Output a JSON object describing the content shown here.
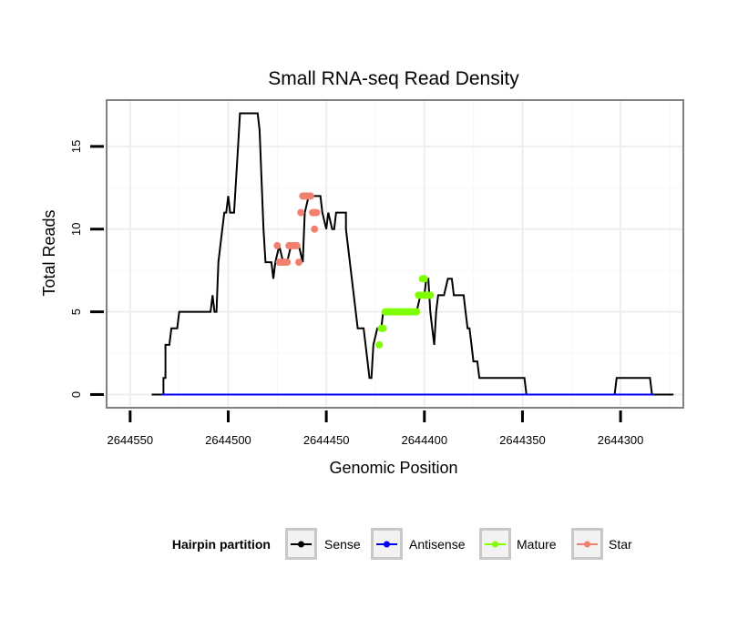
{
  "chart_data": {
    "type": "line",
    "title": "Small RNA-seq Read Density",
    "xlabel": "Genomic Position",
    "ylabel": "Total Reads",
    "x_reversed": true,
    "xlim": [
      2644562,
      2644268
    ],
    "ylim": [
      -0.8,
      17.8
    ],
    "x_ticks": [
      2644550,
      2644500,
      2644450,
      2644400,
      2644350,
      2644300
    ],
    "y_ticks": [
      0,
      5,
      10,
      15
    ],
    "x_tick_labels": [
      "2644550",
      "2644500",
      "2644450",
      "2644400",
      "2644350",
      "2644300"
    ],
    "y_tick_labels": [
      "0",
      "5",
      "10",
      "15"
    ],
    "grid": true,
    "legend": {
      "title": "Hairpin partition",
      "position": "bottom",
      "entries": [
        {
          "name": "Sense",
          "color": "#000000"
        },
        {
          "name": "Antisense",
          "color": "#0000ff"
        },
        {
          "name": "Mature",
          "color": "#7fff00"
        },
        {
          "name": "Star",
          "color": "#f08070"
        }
      ]
    },
    "series": [
      {
        "name": "Sense",
        "color": "#000000",
        "style": "line",
        "points": [
          [
            2644539,
            0
          ],
          [
            2644533,
            0
          ],
          [
            2644533,
            1
          ],
          [
            2644532,
            1
          ],
          [
            2644532,
            2
          ],
          [
            2644532,
            3
          ],
          [
            2644530,
            3
          ],
          [
            2644529,
            4
          ],
          [
            2644526,
            4
          ],
          [
            2644525,
            5
          ],
          [
            2644514,
            5
          ],
          [
            2644509,
            5
          ],
          [
            2644508,
            6
          ],
          [
            2644507,
            5
          ],
          [
            2644506,
            5
          ],
          [
            2644505,
            8
          ],
          [
            2644503,
            10
          ],
          [
            2644502,
            11
          ],
          [
            2644501,
            11
          ],
          [
            2644500,
            12
          ],
          [
            2644499,
            11
          ],
          [
            2644497,
            11
          ],
          [
            2644496,
            13
          ],
          [
            2644495,
            15
          ],
          [
            2644494,
            17
          ],
          [
            2644485,
            17
          ],
          [
            2644484,
            16
          ],
          [
            2644482,
            10
          ],
          [
            2644481,
            8
          ],
          [
            2644478,
            8
          ],
          [
            2644477,
            7
          ],
          [
            2644476,
            8
          ],
          [
            2644474,
            9
          ],
          [
            2644472,
            8
          ],
          [
            2644470,
            8
          ],
          [
            2644468,
            9
          ],
          [
            2644466,
            9
          ],
          [
            2644464,
            9
          ],
          [
            2644462,
            8
          ],
          [
            2644461,
            11
          ],
          [
            2644459,
            12
          ],
          [
            2644453,
            12
          ],
          [
            2644452,
            11
          ],
          [
            2644450,
            10
          ],
          [
            2644449,
            11
          ],
          [
            2644447,
            10
          ],
          [
            2644446,
            10
          ],
          [
            2644445,
            11
          ],
          [
            2644440,
            11
          ],
          [
            2644440,
            10
          ],
          [
            2644438,
            8
          ],
          [
            2644436,
            6
          ],
          [
            2644434,
            4
          ],
          [
            2644431,
            4
          ],
          [
            2644429,
            2
          ],
          [
            2644428,
            1
          ],
          [
            2644427,
            1
          ],
          [
            2644426,
            3
          ],
          [
            2644424,
            4
          ],
          [
            2644422,
            4
          ],
          [
            2644421,
            5
          ],
          [
            2644404,
            5
          ],
          [
            2644402,
            6
          ],
          [
            2644400,
            6
          ],
          [
            2644399,
            7
          ],
          [
            2644398,
            7
          ],
          [
            2644397,
            5
          ],
          [
            2644396,
            4
          ],
          [
            2644395,
            3
          ],
          [
            2644394,
            5
          ],
          [
            2644393,
            6
          ],
          [
            2644390,
            6
          ],
          [
            2644388,
            7
          ],
          [
            2644386,
            7
          ],
          [
            2644385,
            6
          ],
          [
            2644380,
            6
          ],
          [
            2644379,
            5
          ],
          [
            2644378,
            4
          ],
          [
            2644377,
            4
          ],
          [
            2644376,
            3
          ],
          [
            2644375,
            2
          ],
          [
            2644373,
            2
          ],
          [
            2644372,
            1
          ],
          [
            2644370,
            1
          ],
          [
            2644349,
            1
          ],
          [
            2644348,
            0
          ],
          [
            2644303,
            0
          ],
          [
            2644302,
            1
          ],
          [
            2644285,
            1
          ],
          [
            2644284,
            0
          ],
          [
            2644273,
            0
          ]
        ]
      },
      {
        "name": "Antisense",
        "color": "#0000ff",
        "style": "line",
        "points": [
          [
            2644534,
            0
          ],
          [
            2644283,
            0
          ]
        ]
      },
      {
        "name": "Mature",
        "color": "#7fff00",
        "style": "points",
        "points": [
          [
            2644423,
            3
          ],
          [
            2644422,
            4
          ],
          [
            2644421,
            4
          ],
          [
            2644420,
            5
          ],
          [
            2644419,
            5
          ],
          [
            2644418,
            5
          ],
          [
            2644417,
            5
          ],
          [
            2644416,
            5
          ],
          [
            2644415,
            5
          ],
          [
            2644414,
            5
          ],
          [
            2644413,
            5
          ],
          [
            2644412,
            5
          ],
          [
            2644411,
            5
          ],
          [
            2644410,
            5
          ],
          [
            2644409,
            5
          ],
          [
            2644408,
            5
          ],
          [
            2644407,
            5
          ],
          [
            2644406,
            5
          ],
          [
            2644405,
            5
          ],
          [
            2644404,
            5
          ],
          [
            2644403,
            6
          ],
          [
            2644402,
            6
          ],
          [
            2644401,
            7
          ],
          [
            2644400,
            7
          ],
          [
            2644400,
            6
          ],
          [
            2644399,
            6
          ],
          [
            2644398,
            6
          ],
          [
            2644397,
            6
          ]
        ]
      },
      {
        "name": "Star",
        "color": "#f08070",
        "style": "points",
        "points": [
          [
            2644475,
            9
          ],
          [
            2644474,
            8
          ],
          [
            2644473,
            8
          ],
          [
            2644472,
            8
          ],
          [
            2644471,
            8
          ],
          [
            2644470,
            8
          ],
          [
            2644469,
            9
          ],
          [
            2644468,
            9
          ],
          [
            2644467,
            9
          ],
          [
            2644466,
            9
          ],
          [
            2644465,
            9
          ],
          [
            2644464,
            8
          ],
          [
            2644463,
            11
          ],
          [
            2644462,
            12
          ],
          [
            2644461,
            12
          ],
          [
            2644460,
            12
          ],
          [
            2644459,
            12
          ],
          [
            2644458,
            12
          ],
          [
            2644457,
            11
          ],
          [
            2644456,
            11
          ],
          [
            2644456,
            10
          ],
          [
            2644455,
            11
          ]
        ]
      }
    ]
  }
}
